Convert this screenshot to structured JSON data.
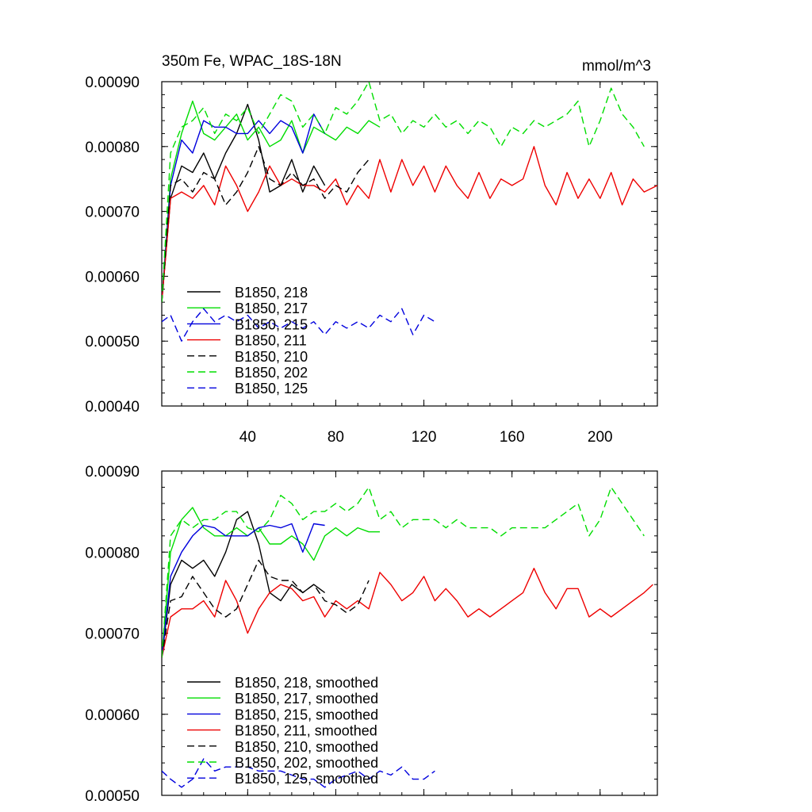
{
  "chart_data": [
    {
      "type": "line",
      "title": "350m Fe, WPAC_18S-18N",
      "units": "mmol/m^3",
      "xlim": [
        1,
        226
      ],
      "ylim": [
        0.0004,
        0.0009
      ],
      "yticks": [
        "0.00040",
        "0.00050",
        "0.00060",
        "0.00070",
        "0.00080",
        "0.00090"
      ],
      "xticks": [
        "40",
        "80",
        "120",
        "160",
        "200"
      ],
      "series": [
        {
          "name": "B1850, 218",
          "color": "#000000",
          "dash": "solid",
          "x": [
            1,
            5,
            10,
            15,
            20,
            25,
            30,
            35,
            40,
            45,
            50,
            55,
            60,
            65,
            70,
            75
          ],
          "values": [
            0.00056,
            0.00072,
            0.00077,
            0.00076,
            0.00079,
            0.00075,
            0.00079,
            0.00082,
            0.000865,
            0.00081,
            0.00073,
            0.00074,
            0.00078,
            0.00073,
            0.00077,
            0.00074
          ]
        },
        {
          "name": "B1850, 217",
          "color": "#00dd00",
          "dash": "solid",
          "x": [
            1,
            5,
            10,
            15,
            20,
            25,
            30,
            35,
            40,
            45,
            50,
            55,
            60,
            65,
            70,
            75,
            80,
            85,
            90,
            95,
            100
          ],
          "values": [
            0.00056,
            0.00075,
            0.00082,
            0.00087,
            0.00082,
            0.00081,
            0.00083,
            0.00085,
            0.00081,
            0.00083,
            0.0008,
            0.00081,
            0.00084,
            0.00079,
            0.00083,
            0.00082,
            0.00081,
            0.00083,
            0.00082,
            0.00084,
            0.00083
          ]
        },
        {
          "name": "B1850, 215",
          "color": "#0000dd",
          "dash": "solid",
          "x": [
            1,
            5,
            10,
            15,
            20,
            25,
            30,
            35,
            40,
            45,
            50,
            55,
            60,
            65,
            70,
            75
          ],
          "values": [
            0.00056,
            0.00074,
            0.00081,
            0.00079,
            0.00084,
            0.00083,
            0.00083,
            0.00082,
            0.00082,
            0.00084,
            0.00082,
            0.00084,
            0.00083,
            0.00079,
            0.00085,
            0.00082
          ]
        },
        {
          "name": "B1850, 211",
          "color": "#ee0000",
          "dash": "solid",
          "x": [
            1,
            5,
            10,
            15,
            20,
            25,
            30,
            35,
            40,
            45,
            50,
            55,
            60,
            65,
            70,
            75,
            80,
            85,
            90,
            95,
            100,
            105,
            110,
            115,
            120,
            125,
            130,
            135,
            140,
            145,
            150,
            155,
            160,
            165,
            170,
            175,
            180,
            185,
            190,
            195,
            200,
            205,
            210,
            215,
            220,
            226
          ],
          "values": [
            0.00056,
            0.00072,
            0.00073,
            0.00072,
            0.00074,
            0.00071,
            0.00077,
            0.00074,
            0.0007,
            0.00073,
            0.00077,
            0.00074,
            0.00075,
            0.00074,
            0.00074,
            0.00073,
            0.00075,
            0.00071,
            0.00074,
            0.00072,
            0.00078,
            0.00073,
            0.00078,
            0.00074,
            0.00077,
            0.00073,
            0.00077,
            0.00074,
            0.00072,
            0.00076,
            0.00072,
            0.00075,
            0.00074,
            0.00075,
            0.0008,
            0.00074,
            0.00071,
            0.00076,
            0.00072,
            0.00075,
            0.00072,
            0.00076,
            0.00071,
            0.00075,
            0.00073,
            0.00074
          ]
        },
        {
          "name": "B1850, 210",
          "color": "#000000",
          "dash": "dashed",
          "x": [
            1,
            5,
            10,
            15,
            20,
            25,
            30,
            35,
            40,
            45,
            50,
            55,
            60,
            65,
            70,
            75,
            80,
            85,
            90,
            95
          ],
          "values": [
            0.00056,
            0.00074,
            0.00075,
            0.00073,
            0.00076,
            0.00075,
            0.00071,
            0.00073,
            0.00076,
            0.0008,
            0.00075,
            0.00074,
            0.00076,
            0.00074,
            0.00075,
            0.00072,
            0.00074,
            0.00073,
            0.00076,
            0.00078
          ]
        },
        {
          "name": "B1850, 202",
          "color": "#00dd00",
          "dash": "dashed",
          "x": [
            1,
            5,
            10,
            15,
            20,
            25,
            30,
            35,
            40,
            45,
            50,
            55,
            60,
            65,
            70,
            75,
            80,
            85,
            90,
            95,
            100,
            105,
            110,
            115,
            120,
            125,
            130,
            135,
            140,
            145,
            150,
            155,
            160,
            165,
            170,
            175,
            180,
            185,
            190,
            195,
            200,
            205,
            210,
            215,
            220
          ],
          "values": [
            0.00056,
            0.00079,
            0.00083,
            0.00084,
            0.00086,
            0.00082,
            0.00085,
            0.00084,
            0.00086,
            0.00082,
            0.00085,
            0.00088,
            0.00087,
            0.00083,
            0.00085,
            0.00082,
            0.00086,
            0.00085,
            0.00087,
            0.0009,
            0.00084,
            0.00085,
            0.00082,
            0.00084,
            0.00083,
            0.00085,
            0.00083,
            0.00084,
            0.00082,
            0.00084,
            0.00083,
            0.0008,
            0.00083,
            0.00082,
            0.00084,
            0.00083,
            0.00084,
            0.00085,
            0.00087,
            0.0008,
            0.00084,
            0.00089,
            0.00085,
            0.00083,
            0.0008
          ]
        },
        {
          "name": "B1850, 125",
          "color": "#0000dd",
          "dash": "dashed",
          "x": [
            1,
            5,
            10,
            15,
            20,
            25,
            30,
            35,
            40,
            45,
            50,
            55,
            60,
            65,
            70,
            75,
            80,
            85,
            90,
            95,
            100,
            105,
            110,
            115,
            120,
            125
          ],
          "values": [
            0.00053,
            0.00054,
            0.0005,
            0.00053,
            0.00055,
            0.00053,
            0.00054,
            0.00053,
            0.00054,
            0.00052,
            0.00053,
            0.00052,
            0.00053,
            0.00052,
            0.00053,
            0.00051,
            0.00053,
            0.00052,
            0.00053,
            0.00052,
            0.00054,
            0.00053,
            0.00055,
            0.00051,
            0.00054,
            0.00053
          ]
        }
      ]
    },
    {
      "type": "line",
      "title": "",
      "units": "",
      "xlim": [
        1,
        226
      ],
      "ylim": [
        0.0005,
        0.0009
      ],
      "yticks": [
        "0.00050",
        "0.00060",
        "0.00070",
        "0.00080",
        "0.00090"
      ],
      "xticks": [],
      "series": [
        {
          "name": "B1850, 218, smoothed",
          "color": "#000000",
          "dash": "solid",
          "x": [
            1,
            5,
            10,
            15,
            20,
            25,
            30,
            35,
            40,
            45,
            50,
            55,
            60,
            65,
            70,
            75
          ],
          "values": [
            0.00067,
            0.00076,
            0.00079,
            0.00078,
            0.00079,
            0.00077,
            0.0008,
            0.00084,
            0.00085,
            0.00081,
            0.00075,
            0.00074,
            0.00076,
            0.00075,
            0.00076,
            0.00075
          ]
        },
        {
          "name": "B1850, 217, smoothed",
          "color": "#00dd00",
          "dash": "solid",
          "x": [
            1,
            5,
            10,
            15,
            20,
            25,
            30,
            35,
            40,
            45,
            50,
            55,
            60,
            65,
            70,
            75,
            80,
            85,
            90,
            95,
            100
          ],
          "values": [
            0.00067,
            0.0008,
            0.00084,
            0.000855,
            0.00083,
            0.00082,
            0.00082,
            0.00083,
            0.00082,
            0.00083,
            0.00081,
            0.00081,
            0.00082,
            0.00081,
            0.00079,
            0.00082,
            0.00083,
            0.00082,
            0.00083,
            0.000825,
            0.000825
          ]
        },
        {
          "name": "B1850, 215, smoothed",
          "color": "#0000dd",
          "dash": "solid",
          "x": [
            1,
            5,
            10,
            15,
            20,
            25,
            30,
            35,
            40,
            45,
            50,
            55,
            60,
            65,
            70,
            75
          ],
          "values": [
            0.00067,
            0.00077,
            0.0008,
            0.00082,
            0.000833,
            0.00083,
            0.00082,
            0.00082,
            0.00082,
            0.00083,
            0.000833,
            0.00083,
            0.000835,
            0.0008,
            0.000835,
            0.000833
          ]
        },
        {
          "name": "B1850, 211, smoothed",
          "color": "#ee0000",
          "dash": "solid",
          "x": [
            1,
            5,
            10,
            15,
            20,
            25,
            30,
            35,
            40,
            45,
            50,
            55,
            60,
            65,
            70,
            75,
            80,
            85,
            90,
            95,
            100,
            105,
            110,
            115,
            120,
            125,
            130,
            135,
            140,
            145,
            150,
            155,
            160,
            165,
            170,
            175,
            180,
            185,
            190,
            195,
            200,
            205,
            210,
            215,
            220,
            224
          ],
          "values": [
            0.00067,
            0.00072,
            0.00073,
            0.00073,
            0.00074,
            0.00072,
            0.000765,
            0.00074,
            0.0007,
            0.00073,
            0.00075,
            0.00076,
            0.000755,
            0.00074,
            0.000745,
            0.00072,
            0.00074,
            0.00073,
            0.00074,
            0.00073,
            0.000775,
            0.00076,
            0.00074,
            0.00075,
            0.00077,
            0.00074,
            0.000755,
            0.00074,
            0.00072,
            0.00073,
            0.00072,
            0.00073,
            0.00074,
            0.00075,
            0.00078,
            0.00075,
            0.00073,
            0.000755,
            0.000755,
            0.00072,
            0.00073,
            0.00072,
            0.00073,
            0.00074,
            0.00075,
            0.00076
          ]
        },
        {
          "name": "B1850, 210, smoothed",
          "color": "#000000",
          "dash": "dashed",
          "x": [
            1,
            5,
            10,
            15,
            20,
            25,
            30,
            35,
            40,
            45,
            50,
            55,
            60,
            65,
            70,
            75,
            80,
            85,
            90,
            95
          ],
          "values": [
            0.00067,
            0.00074,
            0.000745,
            0.00077,
            0.00075,
            0.00073,
            0.00072,
            0.00073,
            0.00076,
            0.00079,
            0.00077,
            0.000765,
            0.000765,
            0.00075,
            0.00076,
            0.00074,
            0.000735,
            0.000725,
            0.000735,
            0.000765
          ]
        },
        {
          "name": "B1850, 202, smoothed",
          "color": "#00dd00",
          "dash": "dashed",
          "x": [
            1,
            5,
            10,
            15,
            20,
            25,
            30,
            35,
            40,
            45,
            50,
            55,
            60,
            65,
            70,
            75,
            80,
            85,
            90,
            95,
            100,
            105,
            110,
            115,
            120,
            125,
            130,
            135,
            140,
            145,
            150,
            155,
            160,
            165,
            170,
            175,
            180,
            185,
            190,
            195,
            200,
            205,
            210,
            215,
            220
          ],
          "values": [
            0.00067,
            0.00082,
            0.00084,
            0.00083,
            0.00084,
            0.00084,
            0.00085,
            0.00085,
            0.00083,
            0.000825,
            0.00084,
            0.00087,
            0.00086,
            0.00084,
            0.00085,
            0.00085,
            0.00086,
            0.00085,
            0.00086,
            0.00088,
            0.00084,
            0.00085,
            0.00083,
            0.00084,
            0.00084,
            0.00084,
            0.00083,
            0.00084,
            0.00083,
            0.00083,
            0.00083,
            0.00082,
            0.00083,
            0.00083,
            0.00083,
            0.00083,
            0.00084,
            0.00085,
            0.00086,
            0.00082,
            0.00084,
            0.00088,
            0.00086,
            0.00084,
            0.00082
          ]
        },
        {
          "name": "B1850, 125, smoothed",
          "color": "#0000dd",
          "dash": "dashed",
          "x": [
            1,
            5,
            10,
            15,
            20,
            25,
            30,
            35,
            40,
            45,
            50,
            55,
            60,
            65,
            70,
            75,
            80,
            85,
            90,
            95,
            100,
            105,
            110,
            115,
            120,
            125
          ],
          "values": [
            0.00053,
            0.00052,
            0.00051,
            0.00052,
            0.000545,
            0.00053,
            0.000535,
            0.000535,
            0.000535,
            0.00053,
            0.00053,
            0.00053,
            0.000525,
            0.00052,
            0.00052,
            0.00051,
            0.00052,
            0.000525,
            0.00053,
            0.00052,
            0.00053,
            0.000525,
            0.000535,
            0.00052,
            0.00052,
            0.00053
          ]
        }
      ]
    }
  ]
}
